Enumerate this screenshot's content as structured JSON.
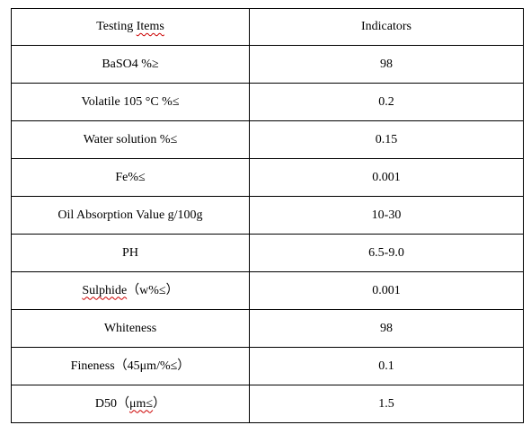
{
  "table": {
    "header": {
      "item_prefix": "Testing ",
      "item_underlined": "Items",
      "indicator": "Indicators"
    },
    "rows": [
      {
        "item_prefix": "",
        "item_underlined": "",
        "item_suffix": "BaSO4 %≥",
        "value": "98"
      },
      {
        "item_prefix": "",
        "item_underlined": "",
        "item_suffix": "Volatile 105 °C %≤",
        "value": "0.2"
      },
      {
        "item_prefix": "",
        "item_underlined": "",
        "item_suffix": "Water solution %≤",
        "value": "0.15"
      },
      {
        "item_prefix": "",
        "item_underlined": "",
        "item_suffix": "Fe%≤",
        "value": "0.001"
      },
      {
        "item_prefix": "",
        "item_underlined": "",
        "item_suffix": "Oil Absorption Value g/100g",
        "value": "10-30"
      },
      {
        "item_prefix": "",
        "item_underlined": "",
        "item_suffix": "PH",
        "value": "6.5-9.0"
      },
      {
        "item_prefix": "",
        "item_underlined": "Sulphide",
        "item_suffix": "（w%≤）",
        "value": "0.001"
      },
      {
        "item_prefix": "",
        "item_underlined": "",
        "item_suffix": "Whiteness",
        "value": "98"
      },
      {
        "item_prefix": "",
        "item_underlined": "",
        "item_suffix": "Fineness（45μm/%≤）",
        "value": "0.1"
      },
      {
        "item_prefix": "D50（",
        "item_underlined": "μm≤",
        "item_suffix": "）",
        "value": "1.5"
      }
    ]
  }
}
